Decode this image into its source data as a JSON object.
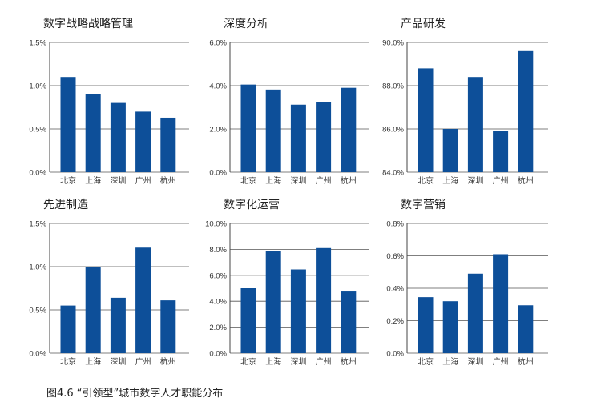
{
  "caption": "图4.6 “引领型”城市数字人才职能分布",
  "colors": {
    "bar": "#0d4f99",
    "grid": "#555555"
  },
  "chart_data": [
    {
      "type": "bar",
      "title": "数字战略战略管理",
      "categories": [
        "北京",
        "上海",
        "深圳",
        "广州",
        "杭州"
      ],
      "values": [
        1.1,
        0.9,
        0.8,
        0.7,
        0.63
      ],
      "unit": "%",
      "ylim": [
        0,
        1.5
      ],
      "yticks": [
        "0.0%",
        "0.5%",
        "1.0%",
        "1.5%"
      ],
      "grid": true
    },
    {
      "type": "bar",
      "title": "深度分析",
      "categories": [
        "北京",
        "上海",
        "深圳",
        "广州",
        "杭州"
      ],
      "values": [
        4.05,
        3.82,
        3.12,
        3.25,
        3.9
      ],
      "unit": "%",
      "ylim": [
        0,
        6
      ],
      "yticks": [
        "0.0%",
        "2.0%",
        "4.0%",
        "6.0%"
      ],
      "grid": true
    },
    {
      "type": "bar",
      "title": "产品研发",
      "categories": [
        "北京",
        "上海",
        "深圳",
        "广州",
        "杭州"
      ],
      "values": [
        88.8,
        86.0,
        88.4,
        85.9,
        89.6
      ],
      "unit": "%",
      "ylim": [
        84,
        90
      ],
      "yticks": [
        "84.0%",
        "86.0%",
        "88.0%",
        "90.0%"
      ],
      "grid": true
    },
    {
      "type": "bar",
      "title": "先进制造",
      "categories": [
        "北京",
        "上海",
        "深圳",
        "广州",
        "杭州"
      ],
      "values": [
        0.55,
        1.0,
        0.64,
        1.22,
        0.61
      ],
      "unit": "%",
      "ylim": [
        0,
        1.5
      ],
      "yticks": [
        "0.0%",
        "0.5%",
        "1.0%",
        "1.5%"
      ],
      "grid": true
    },
    {
      "type": "bar",
      "title": "数字化运营",
      "categories": [
        "北京",
        "上海",
        "深圳",
        "广州",
        "杭州"
      ],
      "values": [
        5.0,
        7.9,
        6.45,
        8.1,
        4.75
      ],
      "unit": "%",
      "ylim": [
        0,
        10
      ],
      "yticks": [
        "0.0%",
        "2.0%",
        "4.0%",
        "6.0%",
        "8.0%",
        "10.0%"
      ],
      "grid": true
    },
    {
      "type": "bar",
      "title": "数字营销",
      "categories": [
        "北京",
        "上海",
        "深圳",
        "广州",
        "杭州"
      ],
      "values": [
        0.345,
        0.32,
        0.49,
        0.61,
        0.295
      ],
      "unit": "%",
      "ylim": [
        0,
        0.8
      ],
      "yticks": [
        "0.0%",
        "0.2%",
        "0.4%",
        "0.6%",
        "0.8%"
      ],
      "grid": true
    }
  ]
}
